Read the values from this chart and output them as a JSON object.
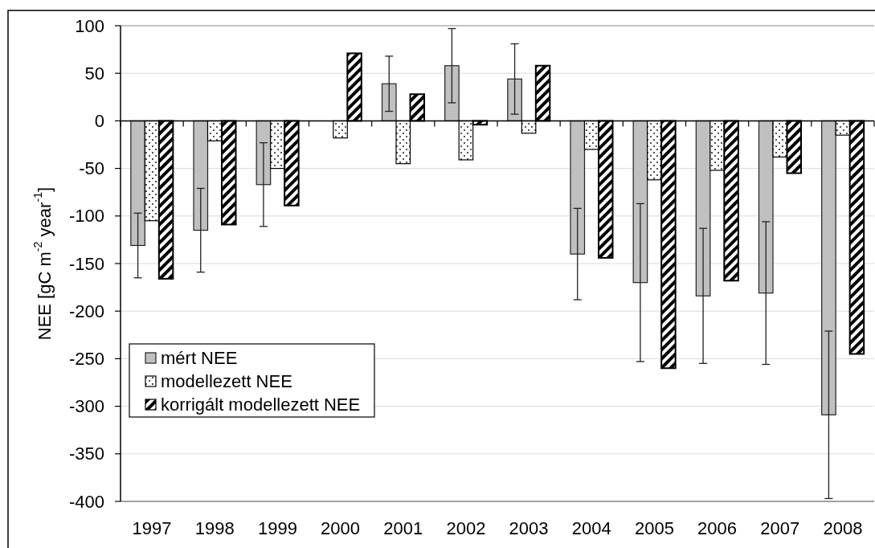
{
  "chart_data": {
    "type": "bar",
    "ylabel": "NEE [gC m$^{-2}$ year$^{-1}$]",
    "categories": [
      "1997",
      "1998",
      "1999",
      "2000",
      "2001",
      "2002",
      "2003",
      "2004",
      "2005",
      "2006",
      "2007",
      "2008"
    ],
    "series": [
      {
        "name": "mért NEE",
        "color": "#c0c0c0",
        "values": [
          -131,
          -115,
          -67,
          null,
          39,
          58,
          44,
          -140,
          -170,
          -184,
          -181,
          -309
        ],
        "errors": [
          34,
          44,
          44,
          null,
          29,
          39,
          37,
          48,
          83,
          71,
          75,
          88
        ]
      },
      {
        "name": "modellezett NEE",
        "color": "#000000",
        "values": [
          -105,
          -21,
          -50,
          -18,
          -45,
          -41,
          -13,
          -30,
          -62,
          -52,
          -38,
          -15
        ]
      },
      {
        "name": "korrigált modellezett NEE",
        "color": "#000000",
        "values": [
          -166,
          -109,
          -89,
          71,
          28,
          -4,
          58,
          -144,
          -260,
          -168,
          -55,
          -245
        ]
      }
    ],
    "ylim": [
      -400,
      100
    ],
    "yticks": [
      -400,
      -350,
      -300,
      -250,
      -200,
      -150,
      -100,
      -50,
      0,
      50,
      100
    ],
    "grid": "y",
    "legend": "bottom left"
  }
}
